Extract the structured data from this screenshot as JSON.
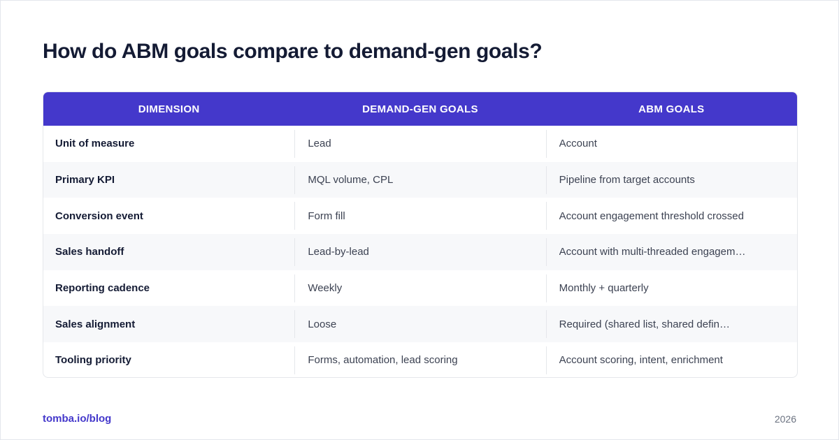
{
  "title": "How do ABM goals compare to demand-gen goals?",
  "table": {
    "headers": [
      "DIMENSION",
      "DEMAND-GEN GOALS",
      "ABM GOALS"
    ],
    "rows": [
      [
        "Unit of measure",
        "Lead",
        "Account"
      ],
      [
        "Primary KPI",
        "MQL volume, CPL",
        "Pipeline from target accounts"
      ],
      [
        "Conversion event",
        "Form fill",
        "Account engagement threshold crossed"
      ],
      [
        "Sales handoff",
        "Lead-by-lead",
        "Account with multi-threaded engagem…"
      ],
      [
        "Reporting cadence",
        "Weekly",
        "Monthly + quarterly"
      ],
      [
        "Sales alignment",
        "Loose",
        "Required (shared list, shared defin…"
      ],
      [
        "Tooling priority",
        "Forms, automation, lead scoring",
        "Account scoring, intent, enrichment"
      ]
    ]
  },
  "footer": {
    "source": "tomba.io/blog",
    "year": "2026"
  },
  "colors": {
    "header_bg": "#4438cb",
    "title": "#141b34",
    "accent": "#4438cb"
  }
}
